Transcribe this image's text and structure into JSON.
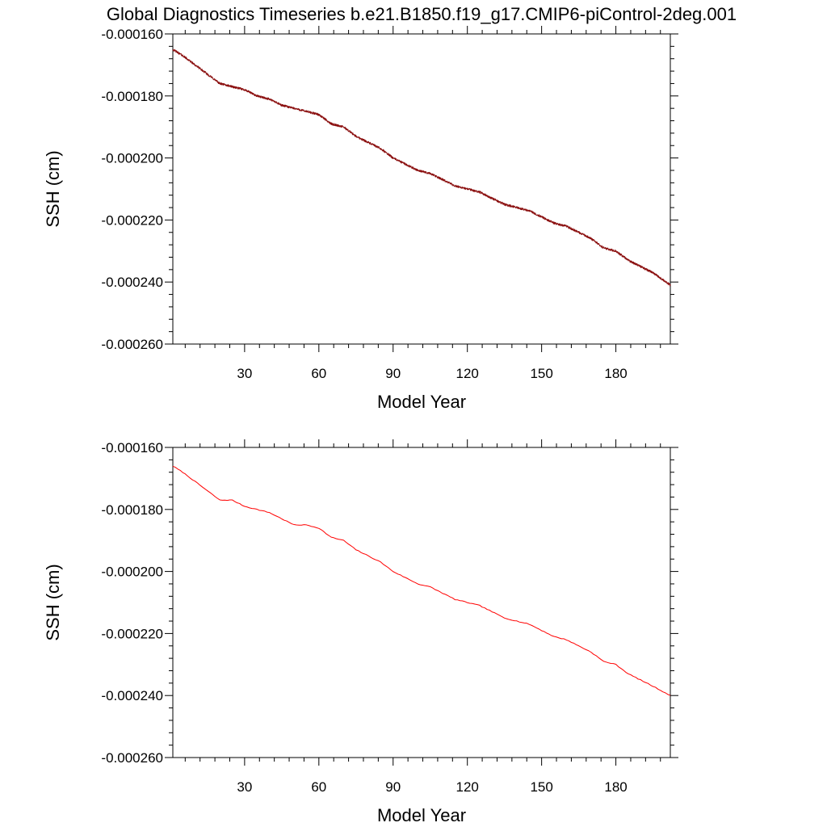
{
  "figure_title": "Global Diagnostics Timeseries b.e21.B1850.f19_g17.CMIP6-piControl-2deg.001",
  "colors": {
    "top_line": "#8b1010",
    "bottom_line": "#ff0000",
    "axes": "#000000"
  },
  "chart_data": [
    {
      "type": "line",
      "title": "Global Diagnostics Timeseries b.e21.B1850.f19_g17.CMIP6-piControl-2deg.001",
      "xlabel": "Model Year",
      "ylabel": "SSH (cm)",
      "xlim": [
        1,
        202
      ],
      "ylim": [
        -0.00026,
        -0.00016
      ],
      "xticks": [
        30,
        60,
        90,
        120,
        150,
        180
      ],
      "xtick_labels": [
        "30",
        "60",
        "90",
        "120",
        "150",
        "180"
      ],
      "yticks": [
        -0.00016,
        -0.00018,
        -0.0002,
        -0.00022,
        -0.00024,
        -0.00026
      ],
      "ytick_labels": [
        "-0.000160",
        "-0.000180",
        "-0.000200",
        "-0.000220",
        "-0.000240",
        "-0.000260"
      ],
      "resolution": "monthly",
      "grid": false,
      "series": [
        {
          "color": "#8b1010",
          "x": [
            1,
            5,
            10,
            15,
            20,
            25,
            30,
            35,
            40,
            45,
            50,
            55,
            60,
            65,
            70,
            75,
            80,
            85,
            90,
            95,
            100,
            105,
            110,
            115,
            120,
            125,
            130,
            135,
            140,
            145,
            150,
            155,
            160,
            165,
            170,
            175,
            180,
            185,
            190,
            195,
            202
          ],
          "y": [
            -0.000165,
            -0.000167,
            -0.00017,
            -0.000173,
            -0.000176,
            -0.000177,
            -0.000178,
            -0.00018,
            -0.000181,
            -0.000183,
            -0.000184,
            -0.000185,
            -0.000186,
            -0.000189,
            -0.00019,
            -0.000193,
            -0.000195,
            -0.000197,
            -0.0002,
            -0.000202,
            -0.000204,
            -0.000205,
            -0.000207,
            -0.000209,
            -0.00021,
            -0.000211,
            -0.000213,
            -0.000215,
            -0.000216,
            -0.000217,
            -0.000219,
            -0.000221,
            -0.000222,
            -0.000224,
            -0.000226,
            -0.000229,
            -0.00023,
            -0.000233,
            -0.000235,
            -0.000237,
            -0.000241
          ]
        }
      ]
    },
    {
      "type": "line",
      "title": "",
      "xlabel": "Model Year",
      "ylabel": "SSH (cm)",
      "xlim": [
        1,
        202
      ],
      "ylim": [
        -0.00026,
        -0.00016
      ],
      "xticks": [
        30,
        60,
        90,
        120,
        150,
        180
      ],
      "xtick_labels": [
        "30",
        "60",
        "90",
        "120",
        "150",
        "180"
      ],
      "yticks": [
        -0.00016,
        -0.00018,
        -0.0002,
        -0.00022,
        -0.00024,
        -0.00026
      ],
      "ytick_labels": [
        "-0.000160",
        "-0.000180",
        "-0.000200",
        "-0.000220",
        "-0.000240",
        "-0.000260"
      ],
      "resolution": "annual",
      "grid": false,
      "series": [
        {
          "color": "#ff0000",
          "x": [
            1,
            5,
            10,
            15,
            20,
            25,
            30,
            35,
            40,
            45,
            50,
            55,
            60,
            65,
            70,
            75,
            80,
            85,
            90,
            95,
            100,
            105,
            110,
            115,
            120,
            125,
            130,
            135,
            140,
            145,
            150,
            155,
            160,
            165,
            170,
            175,
            180,
            185,
            190,
            195,
            202
          ],
          "y": [
            -0.000166,
            -0.000168,
            -0.000171,
            -0.000174,
            -0.000177,
            -0.000177,
            -0.000179,
            -0.00018,
            -0.000181,
            -0.000183,
            -0.000185,
            -0.000185,
            -0.000186,
            -0.000189,
            -0.00019,
            -0.000193,
            -0.000195,
            -0.000197,
            -0.0002,
            -0.000202,
            -0.000204,
            -0.000205,
            -0.000207,
            -0.000209,
            -0.00021,
            -0.000211,
            -0.000213,
            -0.000215,
            -0.000216,
            -0.000217,
            -0.000219,
            -0.000221,
            -0.000222,
            -0.000224,
            -0.000226,
            -0.000229,
            -0.00023,
            -0.000233,
            -0.000235,
            -0.000237,
            -0.00024
          ]
        }
      ]
    }
  ]
}
